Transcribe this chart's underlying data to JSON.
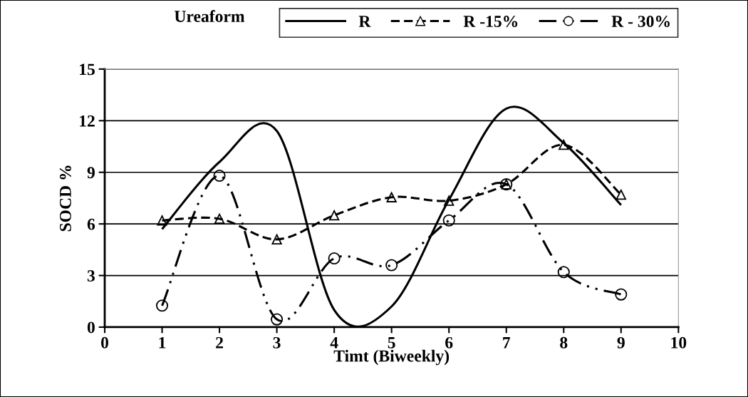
{
  "chart_data": {
    "type": "line",
    "title": "Ureaform",
    "xlabel": "Timt (Biweekly)",
    "ylabel": "SOCD %",
    "x": [
      1,
      2,
      3,
      4,
      5,
      6,
      7,
      8,
      9
    ],
    "xlim": [
      0,
      10
    ],
    "xticks": [
      0,
      1,
      2,
      3,
      4,
      5,
      6,
      7,
      8,
      9,
      10
    ],
    "ylim": [
      0,
      15
    ],
    "yticks": [
      0,
      3,
      6,
      9,
      12,
      15
    ],
    "grid": "y",
    "legend": "top",
    "series": [
      {
        "name": "R",
        "color": "#000000",
        "marker": "none",
        "line_style": "solid",
        "values": [
          5.7,
          9.6,
          11.4,
          1.0,
          1.2,
          7.4,
          12.7,
          10.7,
          7.1
        ]
      },
      {
        "name": "R -15%",
        "color": "#000000",
        "marker": "triangle",
        "line_style": "dashed",
        "values": [
          6.2,
          6.3,
          5.1,
          6.5,
          7.55,
          7.35,
          8.3,
          10.6,
          7.7
        ]
      },
      {
        "name": "R - 30%",
        "color": "#000000",
        "marker": "circle",
        "line_style": "dashdotdot",
        "values": [
          1.25,
          8.8,
          0.45,
          4.0,
          3.6,
          6.2,
          8.3,
          3.2,
          1.9
        ]
      }
    ]
  }
}
